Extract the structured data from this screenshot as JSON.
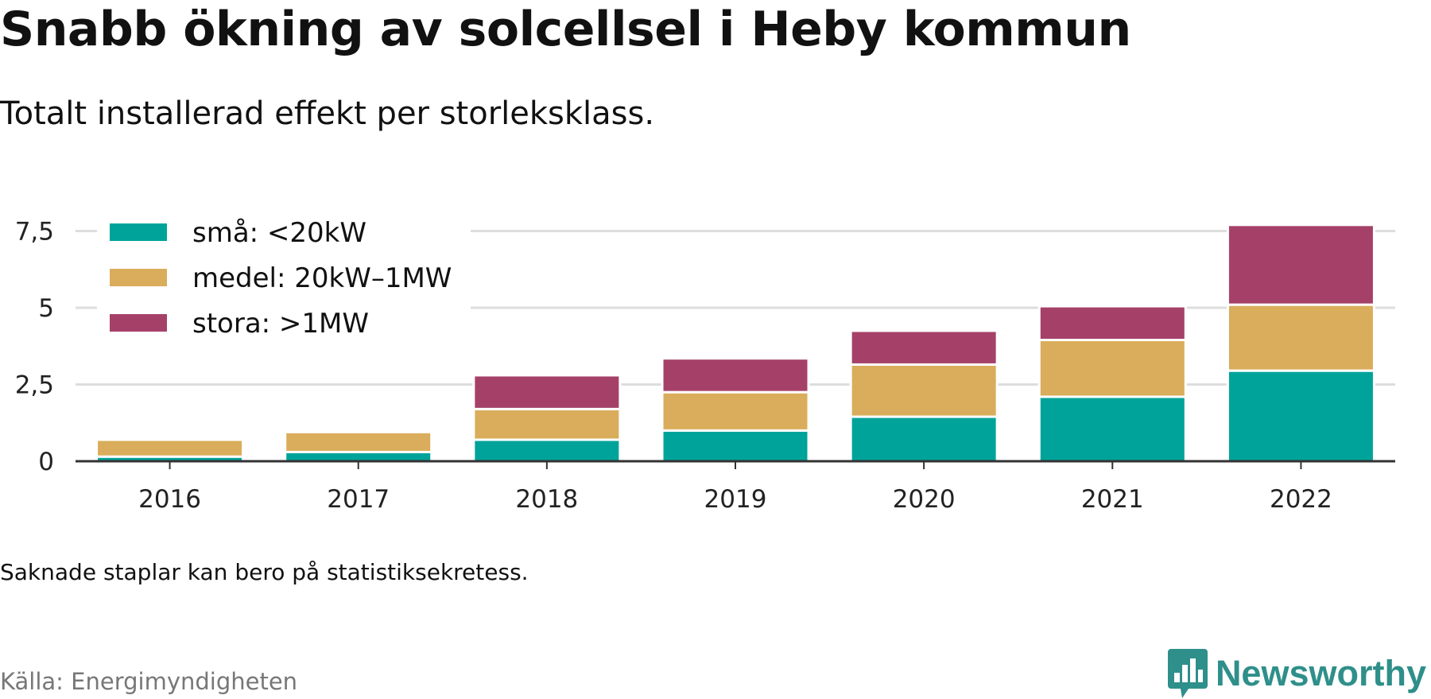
{
  "title": "Snabb ökning av solcellsel i Heby kommun",
  "subtitle": "Totalt installerad effekt per storleksklass.",
  "note": "Saknade staplar kan bero på statistiksekretess.",
  "source": "Källa: Energimyndigheten",
  "brand": {
    "name": "Newsworthy",
    "icon": "newsworthy-logo-icon",
    "color": "#2f8f8a"
  },
  "chart_data": {
    "type": "bar",
    "stacked": true,
    "categories": [
      "2016",
      "2017",
      "2018",
      "2019",
      "2020",
      "2021",
      "2022"
    ],
    "series": [
      {
        "name": "små: <20kW",
        "color": "#00a39a",
        "values": [
          0.15,
          0.3,
          0.7,
          1.0,
          1.45,
          2.1,
          2.95
        ]
      },
      {
        "name": "medel: 20kW–1MW",
        "color": "#d9ad5b",
        "values": [
          0.55,
          0.65,
          1.0,
          1.25,
          1.7,
          1.85,
          2.15
        ]
      },
      {
        "name": "stora: >1MW",
        "color": "#a54168",
        "values": [
          0,
          0,
          1.1,
          1.1,
          1.1,
          1.1,
          2.6
        ]
      }
    ],
    "yticks": [
      0,
      2.5,
      5,
      7.5
    ],
    "ytick_labels": [
      "0",
      "2,5",
      "5",
      "7,5"
    ],
    "ylim": [
      0,
      7.7
    ],
    "xlabel": "",
    "ylabel": "",
    "grid": true,
    "legend": "top-left"
  }
}
